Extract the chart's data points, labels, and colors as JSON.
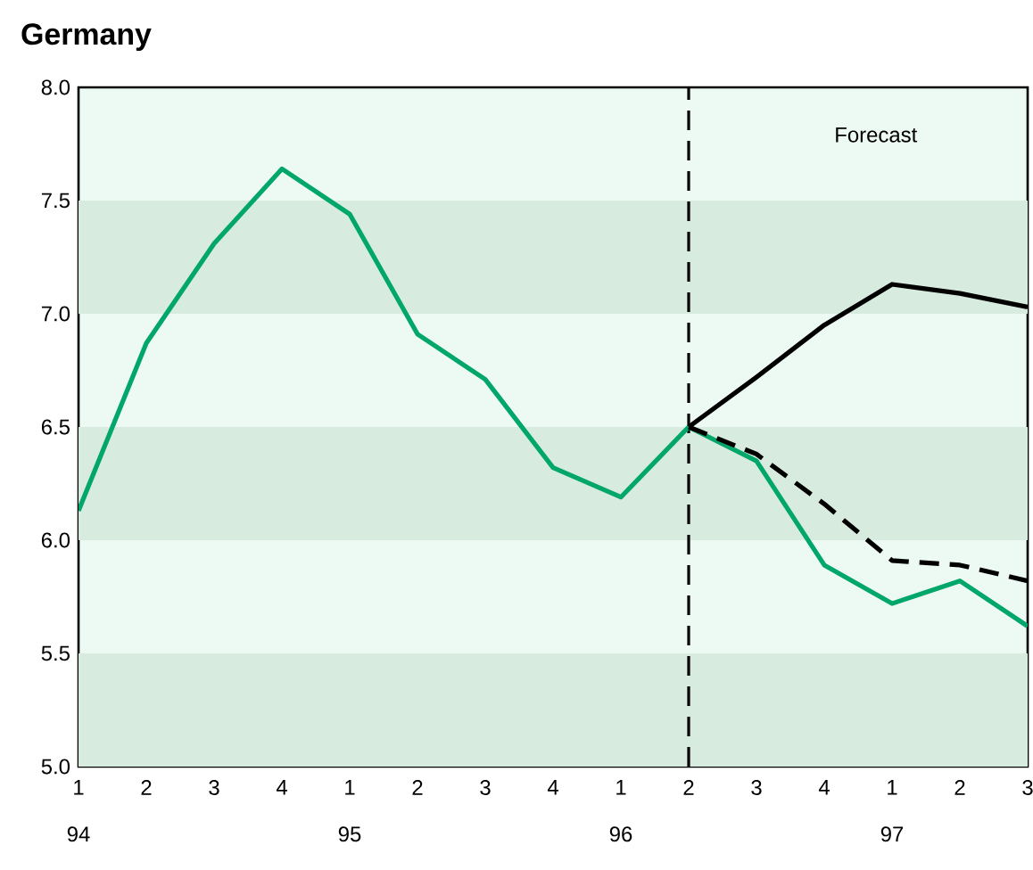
{
  "chart_data": {
    "type": "line",
    "title": "Germany",
    "categories": [
      "1",
      "2",
      "3",
      "4",
      "1",
      "2",
      "3",
      "4",
      "1",
      "2",
      "3",
      "4",
      "1",
      "2",
      "3"
    ],
    "series": [
      {
        "color": "#00a66a",
        "line_style": "solid",
        "values": [
          6.13,
          6.87,
          7.31,
          7.64,
          7.44,
          6.91,
          6.71,
          6.32,
          6.19,
          6.5,
          6.35,
          5.89,
          5.72,
          5.82,
          5.62
        ]
      },
      {
        "color": "#000000",
        "line_style": "solid",
        "values": [
          null,
          null,
          null,
          null,
          null,
          null,
          null,
          null,
          null,
          6.5,
          6.72,
          6.95,
          7.13,
          7.09,
          7.03
        ]
      },
      {
        "color": "#000000",
        "line_style": "dashed",
        "values": [
          null,
          null,
          null,
          null,
          null,
          null,
          null,
          null,
          null,
          6.5,
          6.38,
          6.16,
          5.91,
          5.89,
          5.82
        ]
      }
    ],
    "ylim": [
      5.0,
      8.0
    ],
    "yticks": [
      {
        "value": 5.0,
        "label": "5.0"
      },
      {
        "value": 5.5,
        "label": "5.5"
      },
      {
        "value": 6.0,
        "label": "6.0"
      },
      {
        "value": 6.5,
        "label": "6.5"
      },
      {
        "value": 7.0,
        "label": "7.0"
      },
      {
        "value": 7.5,
        "label": "7.5"
      },
      {
        "value": 8.0,
        "label": "8.0"
      }
    ],
    "bands": [
      {
        "axis": "y",
        "from": 5.0,
        "to": 5.5,
        "color": "#d8ebdf"
      },
      {
        "axis": "y",
        "from": 6.0,
        "to": 6.5,
        "color": "#d8ebdf"
      },
      {
        "axis": "y",
        "from": 7.0,
        "to": 7.5,
        "color": "#d8ebdf"
      }
    ],
    "annotations": [
      "Forecast",
      "94",
      "95",
      "96",
      "97"
    ],
    "marker": "none"
  }
}
